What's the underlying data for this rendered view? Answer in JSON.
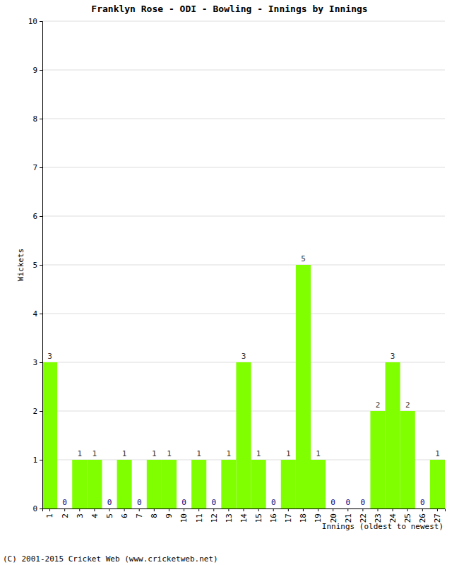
{
  "chart_data": {
    "type": "bar",
    "title": "Franklyn Rose - ODI - Bowling - Innings by Innings",
    "x_label": "Innings (oldest to newest)",
    "y_label": "Wickets",
    "footer": "(C) 2001-2015 Cricket Web (www.cricketweb.net)",
    "categories": [
      "1",
      "2",
      "3",
      "4",
      "5",
      "6",
      "7",
      "8",
      "9",
      "10",
      "11",
      "12",
      "13",
      "14",
      "15",
      "16",
      "17",
      "18",
      "19",
      "20",
      "21",
      "22",
      "23",
      "24",
      "25",
      "26",
      "27"
    ],
    "values": [
      3,
      0,
      1,
      1,
      0,
      1,
      0,
      1,
      1,
      0,
      1,
      0,
      1,
      3,
      1,
      0,
      1,
      5,
      1,
      0,
      0,
      0,
      2,
      3,
      2,
      0,
      1
    ],
    "color": "#80ff00",
    "ylim": [
      0,
      10
    ],
    "yticks": [
      0,
      1,
      2,
      3,
      4,
      5,
      6,
      7,
      8,
      9,
      10
    ],
    "grid": true,
    "data_labels": true
  }
}
